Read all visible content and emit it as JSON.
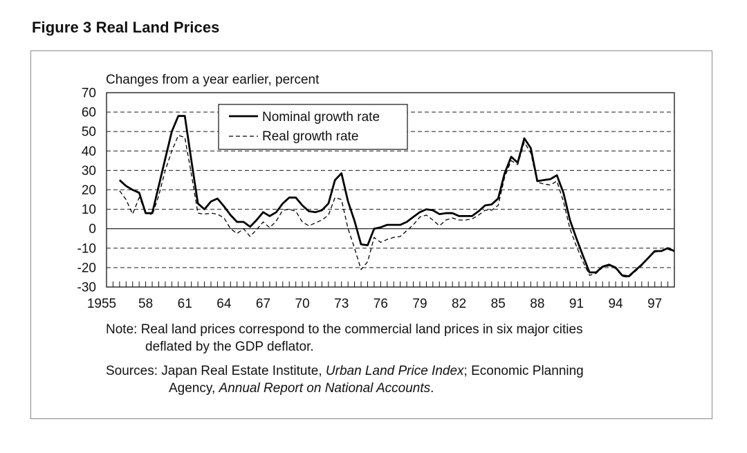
{
  "figure": {
    "title": "Figure 3  Real Land Prices"
  },
  "chart_data": {
    "type": "line",
    "title": "Real Land Prices",
    "ylabel": "Changes from a year earlier, percent",
    "xlabel": "",
    "ylim": [
      -30,
      70
    ],
    "yticks": [
      70,
      60,
      50,
      40,
      30,
      20,
      10,
      0,
      -10,
      -20,
      -30
    ],
    "xlim": [
      1955,
      1998.5
    ],
    "xtick_labels": [
      {
        "x": 1955,
        "label": "1955"
      },
      {
        "x": 1958,
        "label": "58"
      },
      {
        "x": 1961,
        "label": "61"
      },
      {
        "x": 1964,
        "label": "64"
      },
      {
        "x": 1967,
        "label": "67"
      },
      {
        "x": 1970,
        "label": "70"
      },
      {
        "x": 1973,
        "label": "73"
      },
      {
        "x": 1976,
        "label": "76"
      },
      {
        "x": 1979,
        "label": "79"
      },
      {
        "x": 1982,
        "label": "82"
      },
      {
        "x": 1985,
        "label": "85"
      },
      {
        "x": 1988,
        "label": "88"
      },
      {
        "x": 1991,
        "label": "91"
      },
      {
        "x": 1994,
        "label": "94"
      },
      {
        "x": 1997,
        "label": "97"
      }
    ],
    "minor_tick_step": 0.5,
    "grid": "horizontal-dashed",
    "legend_position": "top-center",
    "x": [
      1956,
      1956.5,
      1957,
      1957.5,
      1958,
      1958.5,
      1959,
      1959.5,
      1960,
      1960.5,
      1961,
      1961.5,
      1962,
      1962.5,
      1963,
      1963.5,
      1964,
      1964.5,
      1965,
      1965.5,
      1966,
      1966.5,
      1967,
      1967.5,
      1968,
      1968.5,
      1969,
      1969.5,
      1970,
      1970.5,
      1971,
      1971.5,
      1972,
      1972.5,
      1973,
      1973.5,
      1974,
      1974.5,
      1975,
      1975.5,
      1976,
      1976.5,
      1977,
      1977.5,
      1978,
      1978.5,
      1979,
      1979.5,
      1980,
      1980.5,
      1981,
      1981.5,
      1982,
      1982.5,
      1983,
      1983.5,
      1984,
      1984.5,
      1985,
      1985.5,
      1986,
      1986.5,
      1987,
      1987.5,
      1988,
      1988.5,
      1989,
      1989.5,
      1990,
      1990.5,
      1991,
      1991.5,
      1992,
      1992.5,
      1993,
      1993.5,
      1994,
      1994.5,
      1995,
      1995.5,
      1996,
      1996.5,
      1997,
      1997.5,
      1998,
      1998.5
    ],
    "series": [
      {
        "name": "Nominal growth rate",
        "style": "solid",
        "color": "#000000",
        "values": [
          25,
          22,
          20,
          18.5,
          8,
          8,
          22,
          36,
          50,
          58,
          58,
          35,
          13,
          10,
          14,
          15.5,
          11.5,
          7,
          3.5,
          3.5,
          1,
          4.5,
          8.5,
          6.5,
          8.5,
          13,
          16,
          16,
          12,
          9,
          8.5,
          9.5,
          13,
          25,
          28.5,
          14,
          4,
          -8,
          -8.5,
          0,
          0.7,
          2,
          2,
          2,
          3.5,
          6,
          8.5,
          10,
          9.5,
          7.5,
          8,
          8,
          6.5,
          6.5,
          6.5,
          9,
          12,
          12.5,
          15.5,
          28.5,
          37,
          34,
          46.5,
          41.5,
          24.5,
          25,
          25.5,
          27.5,
          18.5,
          4.5,
          -5,
          -14,
          -22.5,
          -22.5,
          -19.5,
          -18.5,
          -20,
          -24,
          -24.5,
          -21.5,
          -18.5,
          -15,
          -11.5,
          -11.5,
          -10,
          -11.5
        ]
      },
      {
        "name": "Real growth rate",
        "style": "dashed",
        "color": "#000000",
        "values": [
          19.5,
          15,
          7.5,
          16,
          9,
          7,
          17,
          30,
          40,
          48,
          47,
          28,
          8,
          7.5,
          8,
          7.5,
          5.5,
          0,
          -2.5,
          0,
          -4,
          -0.5,
          3.5,
          0.5,
          4,
          9.5,
          10,
          9,
          3.5,
          1.5,
          3,
          4.5,
          7,
          16,
          15,
          0,
          -10,
          -21,
          -17,
          -4.5,
          -7,
          -5.5,
          -4.5,
          -4,
          -1,
          2,
          6,
          7,
          4.5,
          1.5,
          4.5,
          5.5,
          4.5,
          4.5,
          5,
          7,
          9.5,
          9.5,
          12,
          26.5,
          35,
          33,
          44.5,
          39,
          24,
          23,
          22.5,
          24.5,
          14,
          0,
          -9,
          -17,
          -24,
          -23,
          -20,
          -19,
          -20.5,
          -24.5,
          -25,
          -22,
          -19,
          -15,
          -12,
          -11.5,
          -10.5,
          -12
        ]
      }
    ]
  },
  "notes": {
    "note_prefix": "Note:",
    "note_line1": "Real land prices correspond to the commercial land prices in six major cities",
    "note_line2": "deflated by the GDP deflator.",
    "sources_prefix": "Sources:",
    "sources_part1": "Japan Real Estate Institute, ",
    "sources_italic1": "Urban Land Price Index",
    "sources_part2": "; Economic Planning",
    "sources_line2_part1": "Agency, ",
    "sources_italic2": "Annual Report on National Accounts",
    "sources_line2_end": "."
  }
}
